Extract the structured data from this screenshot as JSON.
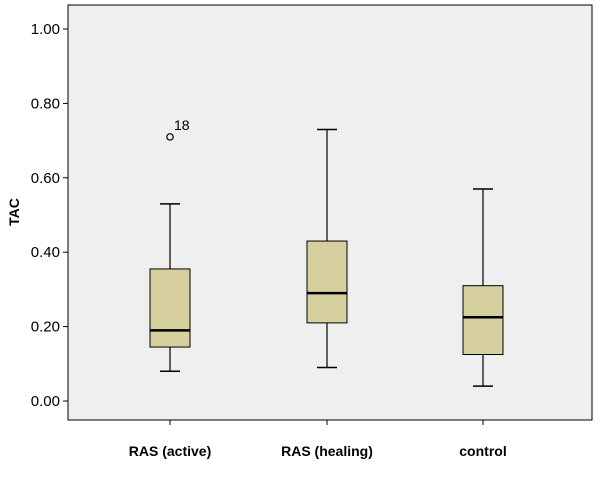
{
  "chart_data": {
    "type": "boxplot",
    "title": "",
    "xlabel": "",
    "ylabel": "TAC",
    "ylim": [
      0,
      1.06
    ],
    "yticks": [
      0.0,
      0.2,
      0.4,
      0.6,
      0.8,
      1.0
    ],
    "ytick_labels": [
      "0.00",
      "0.20",
      "0.40",
      "0.60",
      "0.80",
      "1.00"
    ],
    "categories": [
      "RAS (active)",
      "RAS (healing)",
      "control"
    ],
    "boxes": [
      {
        "category": "RAS (active)",
        "whisker_low": 0.08,
        "q1": 0.145,
        "median": 0.19,
        "q3": 0.355,
        "whisker_high": 0.53,
        "outliers": [
          {
            "value": 0.71,
            "label": "18"
          }
        ]
      },
      {
        "category": "RAS (healing)",
        "whisker_low": 0.09,
        "q1": 0.21,
        "median": 0.29,
        "q3": 0.43,
        "whisker_high": 0.73,
        "outliers": []
      },
      {
        "category": "control",
        "whisker_low": 0.04,
        "q1": 0.125,
        "median": 0.225,
        "q3": 0.31,
        "whisker_high": 0.57,
        "outliers": []
      }
    ],
    "grid": false,
    "legend": "none",
    "colors": {
      "box_fill": "#d6d09e",
      "plot_background": "#efefef",
      "line": "#000000"
    }
  }
}
